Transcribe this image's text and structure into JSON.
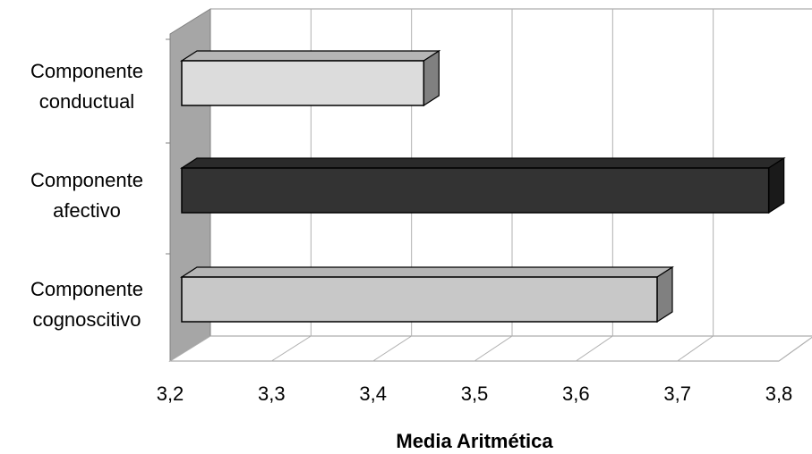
{
  "chart_data": {
    "type": "bar",
    "orientation": "horizontal",
    "three_d": true,
    "categories": [
      [
        "Componente",
        "conductual"
      ],
      [
        "Componente",
        "afectivo"
      ],
      [
        "Componente",
        "cognoscitivo"
      ]
    ],
    "values": [
      3.45,
      3.79,
      3.68
    ],
    "bar_colors": [
      "#dcdcdc",
      "#333333",
      "#c8c8c8"
    ],
    "xlabel": "Media Aritmética",
    "xlim": [
      3.2,
      3.8
    ],
    "ticks": [
      "3,2",
      "3,3",
      "3,4",
      "3,5",
      "3,6",
      "3,7",
      "3,8"
    ],
    "grid": true,
    "legend": "none"
  }
}
